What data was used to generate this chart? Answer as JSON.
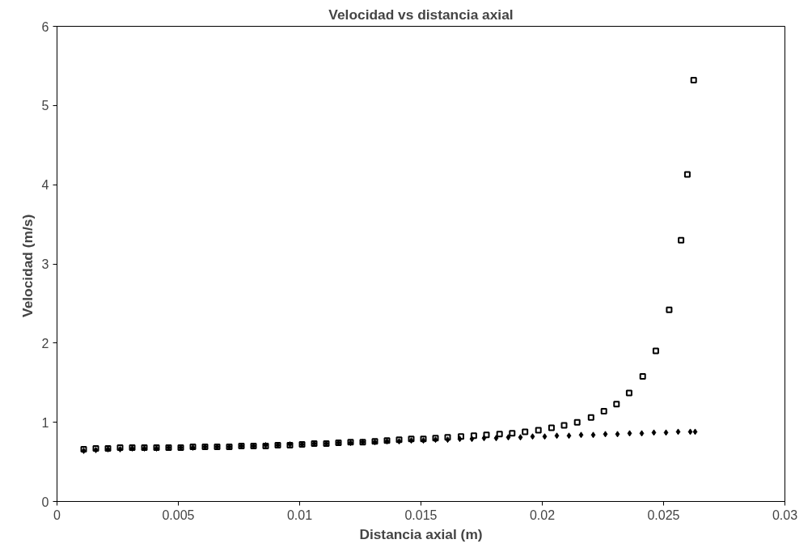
{
  "chart_data": {
    "type": "scatter",
    "title": "Velocidad vs distancia axial",
    "xlabel": "Distancia axial (m)",
    "ylabel": "Velocidad  (m/s)",
    "xlim": [
      0,
      0.03
    ],
    "ylim": [
      0,
      6
    ],
    "xticks": [
      0,
      0.005,
      0.01,
      0.015,
      0.02,
      0.025,
      0.03
    ],
    "yticks": [
      0,
      1,
      2,
      3,
      4,
      5,
      6
    ],
    "grid": false,
    "series": [
      {
        "color": "#000000",
        "marker": "square",
        "x": [
          0.0011,
          0.0016,
          0.0021,
          0.0026,
          0.0031,
          0.0036,
          0.0041,
          0.0046,
          0.0051,
          0.0056,
          0.0061,
          0.0066,
          0.0071,
          0.0076,
          0.0081,
          0.0086,
          0.0091,
          0.0096,
          0.0101,
          0.0106,
          0.0111,
          0.0116,
          0.0121,
          0.0126,
          0.0131,
          0.0136,
          0.0141,
          0.0146,
          0.0151,
          0.0156,
          0.0161,
          0.01665,
          0.01718,
          0.0177,
          0.01824,
          0.01876,
          0.01929,
          0.01984,
          0.02038,
          0.0209,
          0.02144,
          0.02201,
          0.02254,
          0.02306,
          0.02358,
          0.02414,
          0.02468,
          0.02523,
          0.02572,
          0.02598,
          0.02624
        ],
        "values": [
          0.66,
          0.67,
          0.67,
          0.68,
          0.68,
          0.68,
          0.68,
          0.68,
          0.68,
          0.69,
          0.69,
          0.69,
          0.69,
          0.7,
          0.7,
          0.7,
          0.71,
          0.71,
          0.72,
          0.73,
          0.73,
          0.74,
          0.75,
          0.75,
          0.76,
          0.77,
          0.78,
          0.79,
          0.79,
          0.8,
          0.81,
          0.82,
          0.83,
          0.84,
          0.85,
          0.86,
          0.88,
          0.9,
          0.93,
          0.96,
          1.0,
          1.06,
          1.14,
          1.23,
          1.37,
          1.58,
          1.9,
          2.42,
          3.3,
          4.13,
          5.32
        ]
      },
      {
        "color": "#000000",
        "marker": "diamond",
        "x": [
          0.0011,
          0.0016,
          0.0021,
          0.0026,
          0.0031,
          0.0036,
          0.0041,
          0.0046,
          0.0051,
          0.0056,
          0.0061,
          0.0066,
          0.0071,
          0.0076,
          0.0081,
          0.0086,
          0.0091,
          0.0096,
          0.0101,
          0.0106,
          0.0111,
          0.0116,
          0.0121,
          0.0126,
          0.0131,
          0.0136,
          0.0141,
          0.0146,
          0.0151,
          0.0156,
          0.0161,
          0.0166,
          0.0171,
          0.0176,
          0.0181,
          0.0186,
          0.0191,
          0.0196,
          0.0201,
          0.0206,
          0.0211,
          0.0216,
          0.0221,
          0.0226,
          0.0231,
          0.0236,
          0.0241,
          0.0246,
          0.0251,
          0.0256,
          0.0261,
          0.0263
        ],
        "values": [
          0.64,
          0.65,
          0.66,
          0.66,
          0.67,
          0.67,
          0.67,
          0.68,
          0.68,
          0.68,
          0.69,
          0.69,
          0.69,
          0.7,
          0.7,
          0.71,
          0.71,
          0.72,
          0.72,
          0.73,
          0.73,
          0.74,
          0.74,
          0.75,
          0.75,
          0.76,
          0.76,
          0.77,
          0.77,
          0.78,
          0.78,
          0.79,
          0.79,
          0.8,
          0.8,
          0.81,
          0.81,
          0.82,
          0.82,
          0.83,
          0.83,
          0.84,
          0.84,
          0.85,
          0.85,
          0.86,
          0.86,
          0.87,
          0.87,
          0.88,
          0.88,
          0.88
        ]
      }
    ]
  }
}
